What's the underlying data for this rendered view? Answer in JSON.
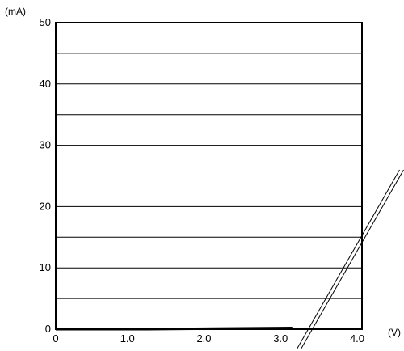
{
  "chart_data": {
    "type": "line",
    "title": "",
    "xlabel": "",
    "ylabel": "",
    "x_unit": "(V)",
    "y_unit": "(mA)",
    "xlim": [
      0,
      4.0
    ],
    "ylim": [
      0,
      50
    ],
    "x_ticks": [
      {
        "value": 0,
        "label": "0"
      },
      {
        "value": 1.0,
        "label": "1.0"
      },
      {
        "value": 2.0,
        "label": "2.0"
      },
      {
        "value": 3.0,
        "label": "3.0"
      },
      {
        "value": 4.0,
        "label": "4.0"
      }
    ],
    "y_ticks": [
      {
        "value": 0,
        "label": "0"
      },
      {
        "value": 10,
        "label": "10"
      },
      {
        "value": 20,
        "label": "20"
      },
      {
        "value": 30,
        "label": "30"
      },
      {
        "value": 40,
        "label": "40"
      },
      {
        "value": 50,
        "label": "50"
      }
    ],
    "gridlines_y": [
      5,
      10,
      15,
      20,
      25,
      30,
      35,
      40,
      45
    ],
    "grid": true,
    "series": [
      {
        "color": "#000000",
        "style": "double-line",
        "x": [
          0,
          1.2,
          3.1,
          3.3,
          4.6
        ],
        "y": [
          0,
          0.0,
          0.2,
          0,
          25
        ]
      }
    ]
  }
}
